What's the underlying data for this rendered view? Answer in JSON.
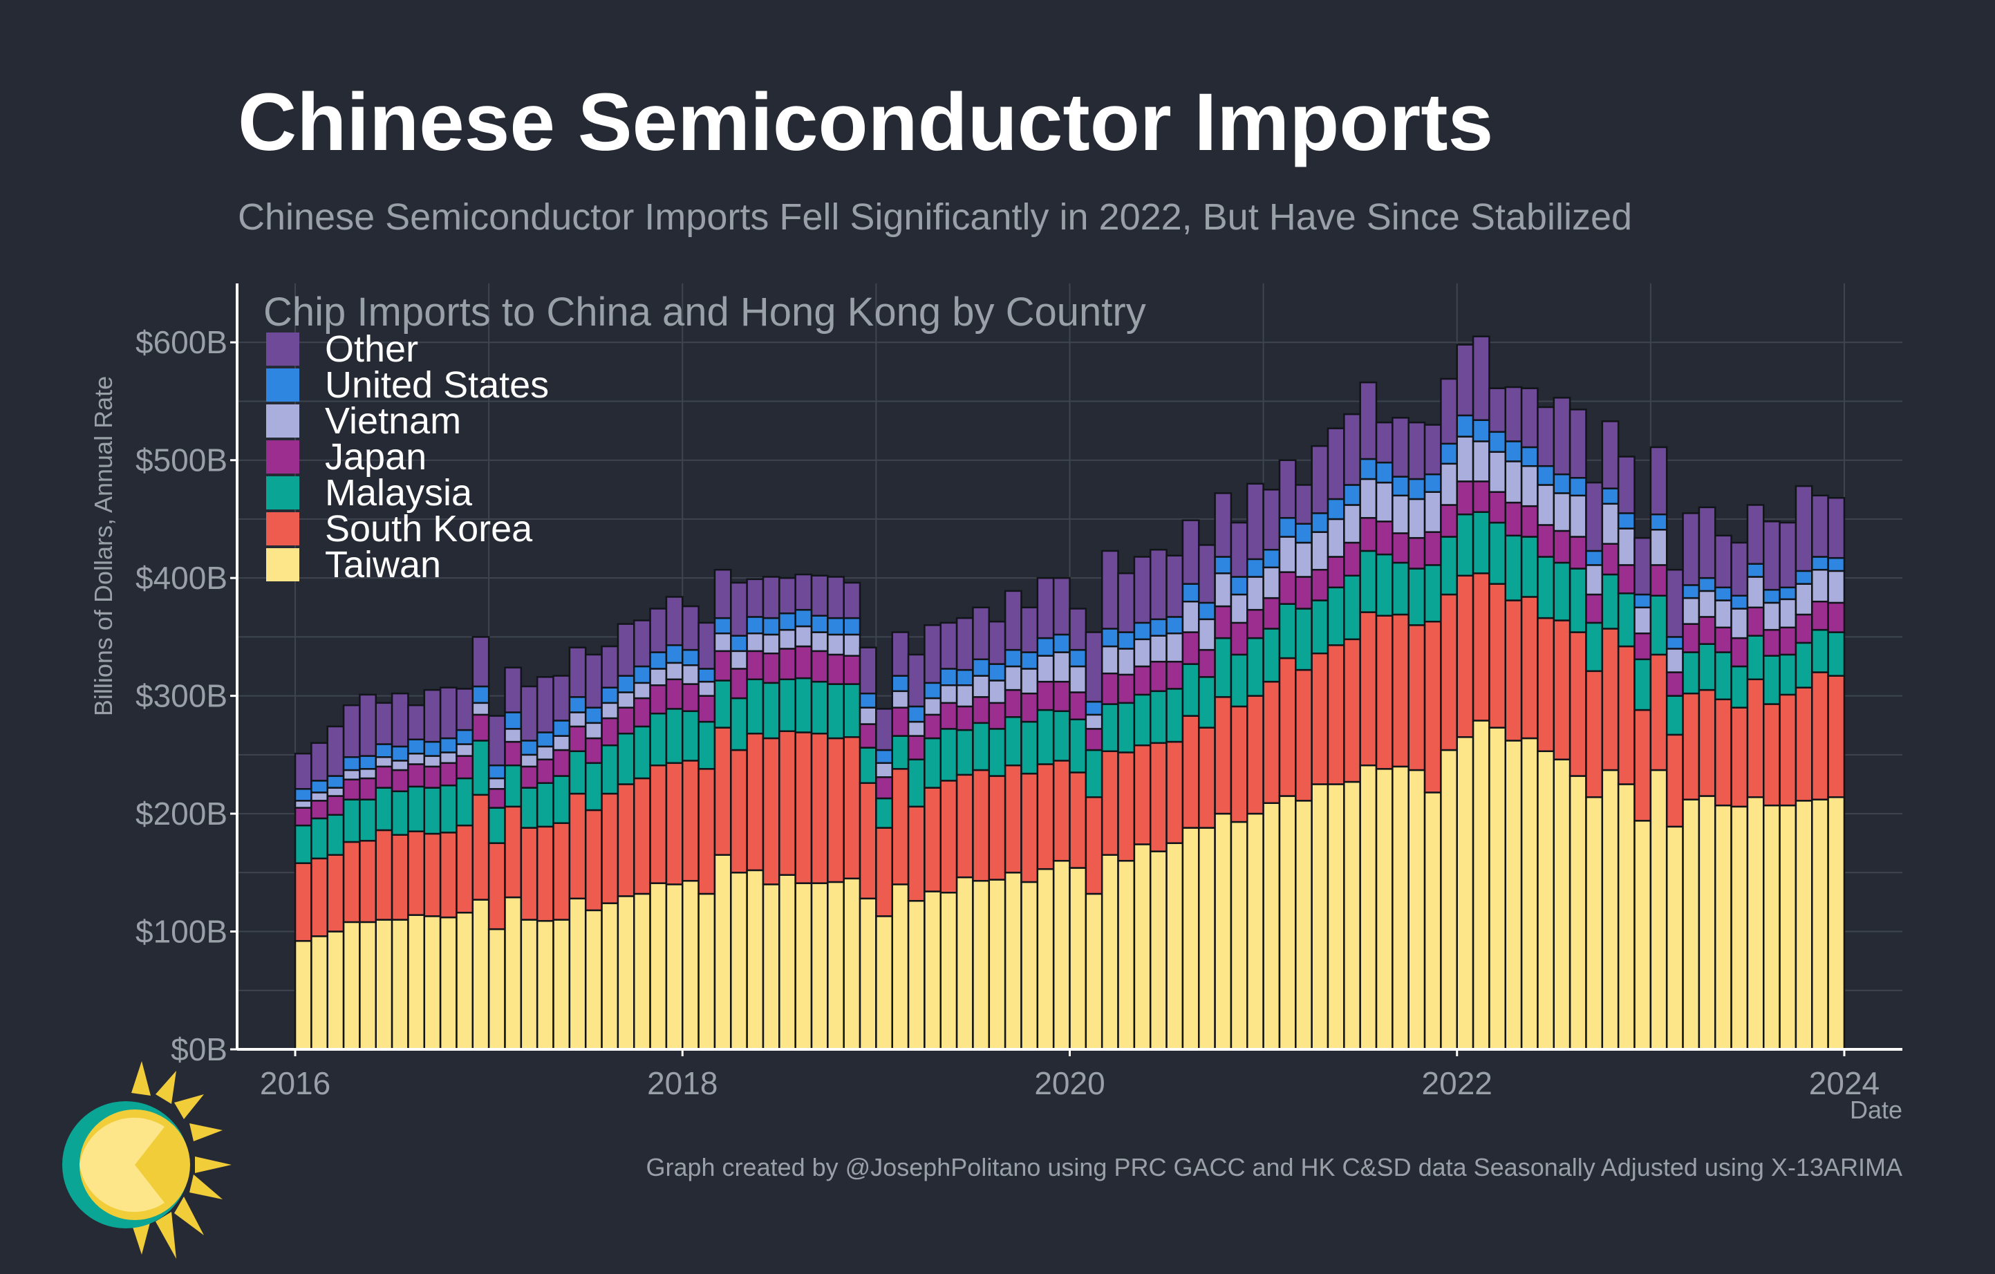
{
  "title": "Chinese Semiconductor Imports",
  "subtitle": "Chinese Semiconductor Imports Fell Significantly in 2022, But Have Since Stabilized",
  "caption": "Graph created by @JosephPolitano using PRC GACC and HK C&SD data Seasonally Adjusted using X-13ARIMA",
  "logo_icon": "sun-icon",
  "colors": {
    "background": "#252a34",
    "grid": "#3f4550",
    "axis": "#ffffff",
    "Taiwan": "#fde68a",
    "South Korea": "#ee5c50",
    "Malaysia": "#0aa595",
    "Japan": "#9b2e8f",
    "Vietnam": "#a9aedd",
    "United States": "#2f86e0",
    "Other": "#6e4a98"
  },
  "chart_data": {
    "type": "bar",
    "stacked": true,
    "title": "Chip Imports to China and Hong Kong by Country",
    "xlabel": "Date",
    "ylabel": "Billions of Dollars, Annual Rate",
    "ylim": [
      0,
      650
    ],
    "y_ticks": [
      "$0B",
      "$100B",
      "$200B",
      "$300B",
      "$400B",
      "$500B",
      "$600B"
    ],
    "y_tick_values": [
      0,
      100,
      200,
      300,
      400,
      500,
      600
    ],
    "x_ticks": [
      "2016",
      "2018",
      "2020",
      "2022",
      "2024"
    ],
    "x_tick_values": [
      2016,
      2018,
      2020,
      2022,
      2024
    ],
    "grid": true,
    "legend_position": "top-left",
    "legend_order": [
      "Other",
      "United States",
      "Vietnam",
      "Japan",
      "Malaysia",
      "South Korea",
      "Taiwan"
    ],
    "stack_order": [
      "Taiwan",
      "South Korea",
      "Malaysia",
      "Japan",
      "Vietnam",
      "United States",
      "Other"
    ],
    "x": [
      "2016-01",
      "2016-02",
      "2016-03",
      "2016-04",
      "2016-05",
      "2016-06",
      "2016-07",
      "2016-08",
      "2016-09",
      "2016-10",
      "2016-11",
      "2016-12",
      "2017-01",
      "2017-02",
      "2017-03",
      "2017-04",
      "2017-05",
      "2017-06",
      "2017-07",
      "2017-08",
      "2017-09",
      "2017-10",
      "2017-11",
      "2017-12",
      "2018-01",
      "2018-02",
      "2018-03",
      "2018-04",
      "2018-05",
      "2018-06",
      "2018-07",
      "2018-08",
      "2018-09",
      "2018-10",
      "2018-11",
      "2018-12",
      "2019-01",
      "2019-02",
      "2019-03",
      "2019-04",
      "2019-05",
      "2019-06",
      "2019-07",
      "2019-08",
      "2019-09",
      "2019-10",
      "2019-11",
      "2019-12",
      "2020-01",
      "2020-02",
      "2020-03",
      "2020-04",
      "2020-05",
      "2020-06",
      "2020-07",
      "2020-08",
      "2020-09",
      "2020-10",
      "2020-11",
      "2020-12",
      "2021-01",
      "2021-02",
      "2021-03",
      "2021-04",
      "2021-05",
      "2021-06",
      "2021-07",
      "2021-08",
      "2021-09",
      "2021-10",
      "2021-11",
      "2021-12",
      "2022-01",
      "2022-02",
      "2022-03",
      "2022-04",
      "2022-05",
      "2022-06",
      "2022-07",
      "2022-08",
      "2022-09",
      "2022-10",
      "2022-11",
      "2022-12",
      "2023-01",
      "2023-02",
      "2023-03",
      "2023-04",
      "2023-05",
      "2023-06",
      "2023-07",
      "2023-08",
      "2023-09",
      "2023-10",
      "2023-11",
      "2023-12"
    ],
    "series": [
      {
        "name": "Taiwan",
        "values": [
          92,
          96,
          100,
          108,
          108,
          110,
          110,
          114,
          113,
          112,
          116,
          127,
          102,
          129,
          110,
          109,
          110,
          128,
          118,
          124,
          130,
          132,
          141,
          140,
          143,
          132,
          165,
          150,
          152,
          140,
          148,
          141,
          141,
          142,
          145,
          128,
          113,
          140,
          126,
          134,
          133,
          146,
          143,
          144,
          150,
          142,
          153,
          160,
          154,
          132,
          165,
          160,
          174,
          168,
          175,
          188,
          188,
          200,
          193,
          200,
          209,
          215,
          211,
          225,
          225,
          227,
          241,
          238,
          240,
          237,
          218,
          254,
          265,
          279,
          273,
          262,
          264,
          253,
          246,
          232,
          214,
          237,
          225,
          194,
          237,
          189,
          212,
          215,
          207,
          206,
          214,
          207,
          207,
          211,
          212,
          214
        ]
      },
      {
        "name": "South Korea",
        "values": [
          66,
          66,
          65,
          68,
          69,
          76,
          72,
          71,
          70,
          72,
          74,
          89,
          73,
          77,
          78,
          80,
          82,
          89,
          85,
          93,
          95,
          98,
          100,
          103,
          102,
          106,
          108,
          104,
          116,
          124,
          122,
          128,
          127,
          122,
          120,
          98,
          75,
          98,
          80,
          88,
          95,
          87,
          94,
          88,
          91,
          92,
          89,
          85,
          81,
          82,
          88,
          92,
          84,
          92,
          86,
          95,
          85,
          99,
          98,
          100,
          103,
          117,
          111,
          111,
          118,
          121,
          130,
          130,
          129,
          123,
          145,
          132,
          137,
          125,
          122,
          119,
          120,
          113,
          118,
          122,
          107,
          120,
          117,
          94,
          98,
          78,
          90,
          90,
          90,
          84,
          100,
          86,
          94,
          96,
          108,
          103
        ]
      },
      {
        "name": "Malaysia",
        "values": [
          32,
          34,
          34,
          36,
          35,
          36,
          37,
          38,
          39,
          40,
          40,
          46,
          30,
          35,
          34,
          37,
          40,
          36,
          40,
          41,
          43,
          44,
          44,
          46,
          42,
          40,
          40,
          44,
          46,
          47,
          44,
          46,
          44,
          46,
          45,
          30,
          25,
          28,
          40,
          42,
          44,
          38,
          40,
          40,
          41,
          44,
          46,
          42,
          45,
          40,
          40,
          42,
          43,
          44,
          45,
          44,
          43,
          50,
          44,
          49,
          45,
          46,
          52,
          45,
          49,
          54,
          52,
          52,
          44,
          48,
          48,
          49,
          52,
          52,
          52,
          55,
          51,
          52,
          49,
          54,
          41,
          46,
          45,
          43,
          50,
          33,
          35,
          39,
          40,
          35,
          37,
          41,
          34,
          38,
          36,
          37
        ]
      },
      {
        "name": "Japan",
        "values": [
          15,
          15,
          16,
          17,
          18,
          18,
          18,
          19,
          18,
          19,
          19,
          22,
          16,
          20,
          18,
          20,
          22,
          21,
          21,
          23,
          22,
          24,
          24,
          25,
          23,
          22,
          25,
          25,
          24,
          25,
          26,
          27,
          26,
          25,
          24,
          20,
          18,
          24,
          20,
          20,
          22,
          20,
          22,
          22,
          23,
          24,
          24,
          25,
          23,
          18,
          26,
          24,
          24,
          25,
          23,
          27,
          23,
          27,
          27,
          24,
          26,
          27,
          27,
          26,
          26,
          28,
          28,
          28,
          25,
          26,
          28,
          27,
          28,
          26,
          26,
          28,
          26,
          27,
          27,
          27,
          24,
          26,
          24,
          22,
          26,
          20,
          24,
          23,
          21,
          24,
          24,
          22,
          23,
          24,
          24,
          25
        ]
      },
      {
        "name": "Vietnam",
        "values": [
          6,
          7,
          7,
          8,
          8,
          8,
          8,
          9,
          9,
          9,
          10,
          10,
          9,
          11,
          10,
          11,
          12,
          12,
          13,
          13,
          13,
          13,
          14,
          14,
          16,
          12,
          15,
          15,
          15,
          16,
          16,
          17,
          16,
          17,
          18,
          14,
          12,
          14,
          12,
          14,
          15,
          18,
          18,
          19,
          20,
          21,
          22,
          25,
          22,
          12,
          23,
          22,
          23,
          22,
          24,
          26,
          26,
          28,
          24,
          28,
          26,
          30,
          29,
          32,
          32,
          32,
          33,
          33,
          32,
          33,
          34,
          35,
          38,
          34,
          34,
          35,
          34,
          34,
          32,
          35,
          25,
          34,
          31,
          22,
          30,
          20,
          22,
          22,
          23,
          25,
          26,
          23,
          24,
          26,
          27,
          27
        ]
      },
      {
        "name": "United States",
        "values": [
          10,
          10,
          10,
          11,
          11,
          11,
          12,
          12,
          12,
          12,
          12,
          14,
          11,
          14,
          12,
          12,
          13,
          13,
          13,
          13,
          14,
          14,
          14,
          15,
          13,
          11,
          13,
          13,
          14,
          14,
          14,
          14,
          14,
          14,
          14,
          12,
          11,
          13,
          13,
          13,
          14,
          13,
          14,
          14,
          14,
          14,
          15,
          15,
          14,
          11,
          15,
          14,
          14,
          14,
          14,
          15,
          14,
          14,
          15,
          15,
          15,
          16,
          16,
          16,
          17,
          17,
          17,
          17,
          16,
          17,
          15,
          17,
          18,
          18,
          17,
          17,
          16,
          16,
          16,
          15,
          12,
          13,
          13,
          11,
          13,
          10,
          11,
          11,
          11,
          11,
          11,
          11,
          10,
          11,
          11,
          11
        ]
      },
      {
        "name": "Other",
        "values": [
          30,
          32,
          42,
          44,
          52,
          35,
          45,
          29,
          44,
          43,
          35,
          42,
          42,
          38,
          46,
          47,
          38,
          42,
          45,
          35,
          44,
          39,
          37,
          41,
          37,
          39,
          41,
          45,
          32,
          35,
          30,
          30,
          34,
          35,
          30,
          39,
          35,
          37,
          44,
          49,
          39,
          44,
          44,
          36,
          50,
          38,
          51,
          48,
          35,
          59,
          66,
          50,
          56,
          59,
          52,
          54,
          49,
          54,
          46,
          64,
          51,
          49,
          33,
          57,
          60,
          60,
          65,
          34,
          50,
          48,
          42,
          55,
          60,
          71,
          37,
          46,
          50,
          50,
          65,
          58,
          58,
          57,
          48,
          48,
          57,
          57,
          61,
          60,
          44,
          45,
          50,
          58,
          55,
          72,
          52,
          51
        ]
      }
    ]
  }
}
